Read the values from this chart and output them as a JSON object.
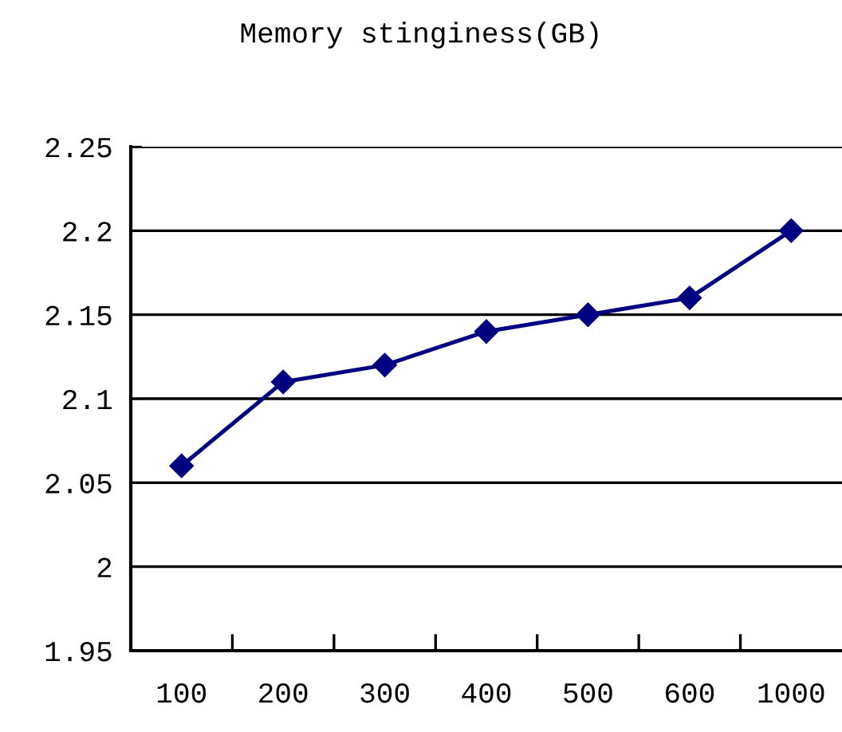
{
  "chart_data": {
    "type": "line",
    "title": "Memory stinginess(GB)",
    "categories": [
      "100",
      "200",
      "300",
      "400",
      "500",
      "600",
      "1000"
    ],
    "series": [
      {
        "color": "#000080",
        "values": [
          2.06,
          2.11,
          2.12,
          2.14,
          2.15,
          2.16,
          2.2
        ]
      }
    ],
    "ylim": [
      1.95,
      2.25
    ],
    "yticks": [
      1.95,
      2,
      2.05,
      2.1,
      2.15,
      2.2,
      2.25
    ],
    "grid": "y",
    "marker": "diamond",
    "line_style": "solid",
    "legend": false
  }
}
